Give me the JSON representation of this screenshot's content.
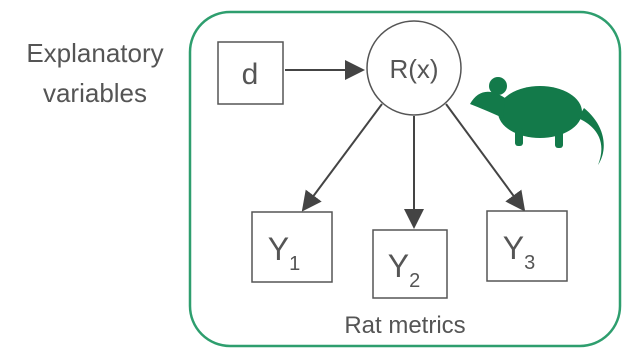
{
  "left_label": [
    "Explanatory",
    "variables"
  ],
  "nodes": {
    "input": "d",
    "model": "R(x)"
  },
  "outputs": [
    {
      "main": "Y",
      "sub": "1"
    },
    {
      "main": "Y",
      "sub": "2"
    },
    {
      "main": "Y",
      "sub": "3"
    }
  ],
  "caption": "Rat metrics"
}
